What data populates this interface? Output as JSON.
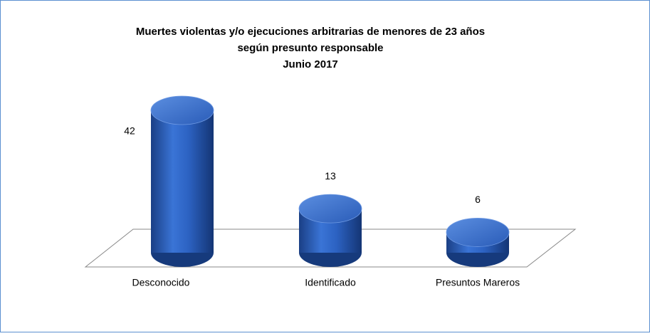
{
  "chart_data": {
    "type": "bar3d",
    "title": [
      "Muertes violentas y/o ejecuciones arbitrarias de menores de 23 años",
      "según presunto responsable",
      "Junio 2017"
    ],
    "categories": [
      "Desconocido",
      "Identificado",
      "Presuntos Mareros"
    ],
    "values": [
      42,
      13,
      6
    ],
    "color": "#2e63c0"
  }
}
